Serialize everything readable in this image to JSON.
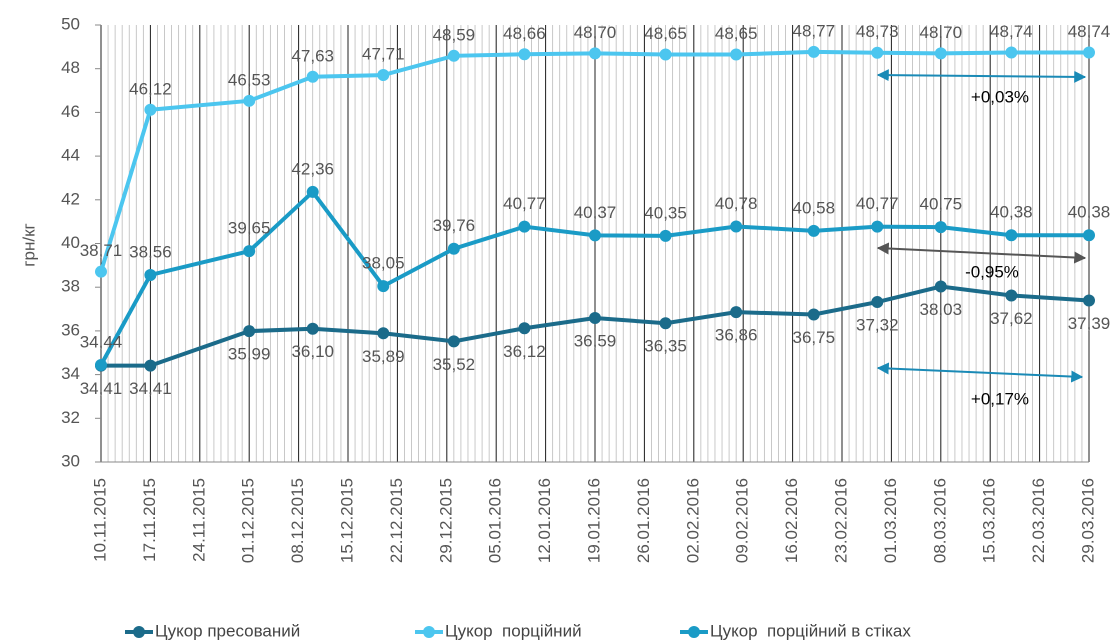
{
  "chart_data": {
    "type": "line",
    "ylabel": "грн/кг",
    "x": [
      "10.11.2015",
      "17.11.2015",
      "01.12.2015",
      "10.12.2015",
      "20.12.2015",
      "30.12.2015",
      "09.01.2016",
      "19.01.2016",
      "29.01.2016",
      "08.02.2016",
      "19.02.2016",
      "28.02.2016",
      "08.03.2016",
      "18.03.2016",
      "29.03.2016"
    ],
    "series": [
      {
        "name": "Цукор пресований",
        "color": "#1b6b8a",
        "values": [
          34.41,
          34.41,
          35.99,
          36.1,
          35.89,
          35.52,
          36.12,
          36.59,
          36.35,
          36.86,
          36.75,
          37.32,
          38.03,
          37.62,
          37.39
        ],
        "value_labels": [
          "34,41",
          "34,41",
          "35,99",
          "36,10",
          "35,89",
          "35,52",
          "36,12",
          "36,59",
          "36,35",
          "36,86",
          "36,75",
          "37,32",
          "38,03",
          "37,62",
          "37,39"
        ]
      },
      {
        "name": "Цукор  порційний",
        "color": "#4cc6ef",
        "values": [
          38.71,
          46.12,
          46.53,
          47.63,
          47.71,
          48.59,
          48.66,
          48.7,
          48.65,
          48.65,
          48.77,
          48.73,
          48.7,
          48.74,
          48.74
        ],
        "value_labels": [
          "38,71",
          "46,12",
          "46,53",
          "47,63",
          "47,71",
          "48,59",
          "48,66",
          "48,70",
          "48,65",
          "48,65",
          "48,77",
          "48,73",
          "48,70",
          "48,74",
          "48,74"
        ]
      },
      {
        "name": "Цукор  порційний в стіках",
        "color": "#1a9bc6",
        "values": [
          34.44,
          38.56,
          39.65,
          42.36,
          38.05,
          39.76,
          40.77,
          40.37,
          40.35,
          40.78,
          40.58,
          40.77,
          40.75,
          40.38,
          40.38
        ],
        "value_labels": [
          "34,44",
          "38,56",
          "39,65",
          "42,36",
          "38,05",
          "39,76",
          "40,77",
          "40,37",
          "40,35",
          "40,78",
          "40,58",
          "40,77",
          "40,75",
          "40,38",
          "40,38"
        ]
      }
    ],
    "xlim": [
      "10.11.2015",
      "29.03.2016"
    ],
    "xticks": [
      "10.11.2015",
      "17.11.2015",
      "24.11.2015",
      "01.12.2015",
      "08.12.2015",
      "15.12.2015",
      "22.12.2015",
      "29.12.2015",
      "05.01.2016",
      "12.01.2016",
      "19.01.2016",
      "26.01.2016",
      "02.02.2016",
      "09.02.2016",
      "16.02.2016",
      "23.02.2016",
      "01.03.2016",
      "08.03.2016",
      "15.03.2016",
      "22.03.2016",
      "29.03.2016"
    ],
    "ylim": [
      30,
      50
    ],
    "yticks": [
      30,
      32,
      34,
      36,
      38,
      40,
      42,
      44,
      46,
      48,
      50
    ],
    "annotations": [
      "+0,03%",
      "-0,95%",
      "+0,17%"
    ],
    "legend": "bottom"
  }
}
